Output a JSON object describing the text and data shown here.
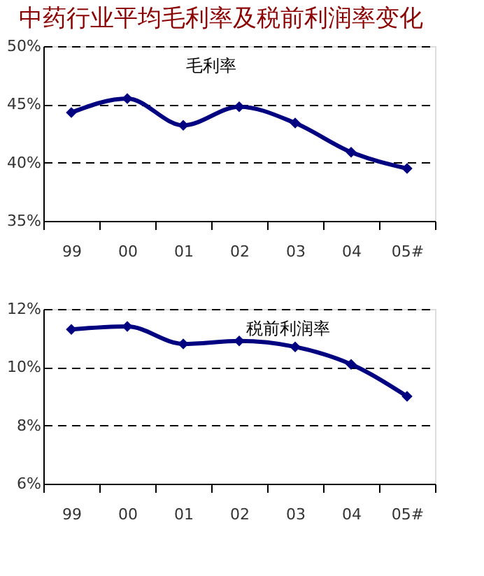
{
  "chart_data": [
    {
      "type": "line",
      "title": "中药行业平均毛利率及税前利润率变化",
      "categories": [
        "99",
        "00",
        "01",
        "02",
        "03",
        "04",
        "05#"
      ],
      "series": [
        {
          "name": "毛利率",
          "color": "#000080",
          "values": [
            44.3,
            45.5,
            43.2,
            44.8,
            43.4,
            40.9,
            39.5
          ]
        }
      ],
      "ylim": [
        35,
        50
      ],
      "yticks": [
        {
          "value": 35,
          "label": "35%"
        },
        {
          "value": 40,
          "label": "40%"
        },
        {
          "value": 45,
          "label": "45%"
        },
        {
          "value": 50,
          "label": "50%"
        }
      ],
      "grid": "y",
      "marker": "diamond",
      "line_style": "solid"
    },
    {
      "type": "line",
      "categories": [
        "99",
        "00",
        "01",
        "02",
        "03",
        "04",
        "05#"
      ],
      "series": [
        {
          "name": "税前利润率",
          "color": "#000080",
          "values": [
            11.3,
            11.4,
            10.8,
            10.9,
            10.7,
            10.1,
            9.0
          ]
        }
      ],
      "ylim": [
        6,
        12
      ],
      "yticks": [
        {
          "value": 6,
          "label": "6%"
        },
        {
          "value": 8,
          "label": "8%"
        },
        {
          "value": 10,
          "label": "10%"
        },
        {
          "value": 12,
          "label": "12%"
        }
      ],
      "grid": "y",
      "marker": "diamond",
      "line_style": "solid"
    }
  ]
}
